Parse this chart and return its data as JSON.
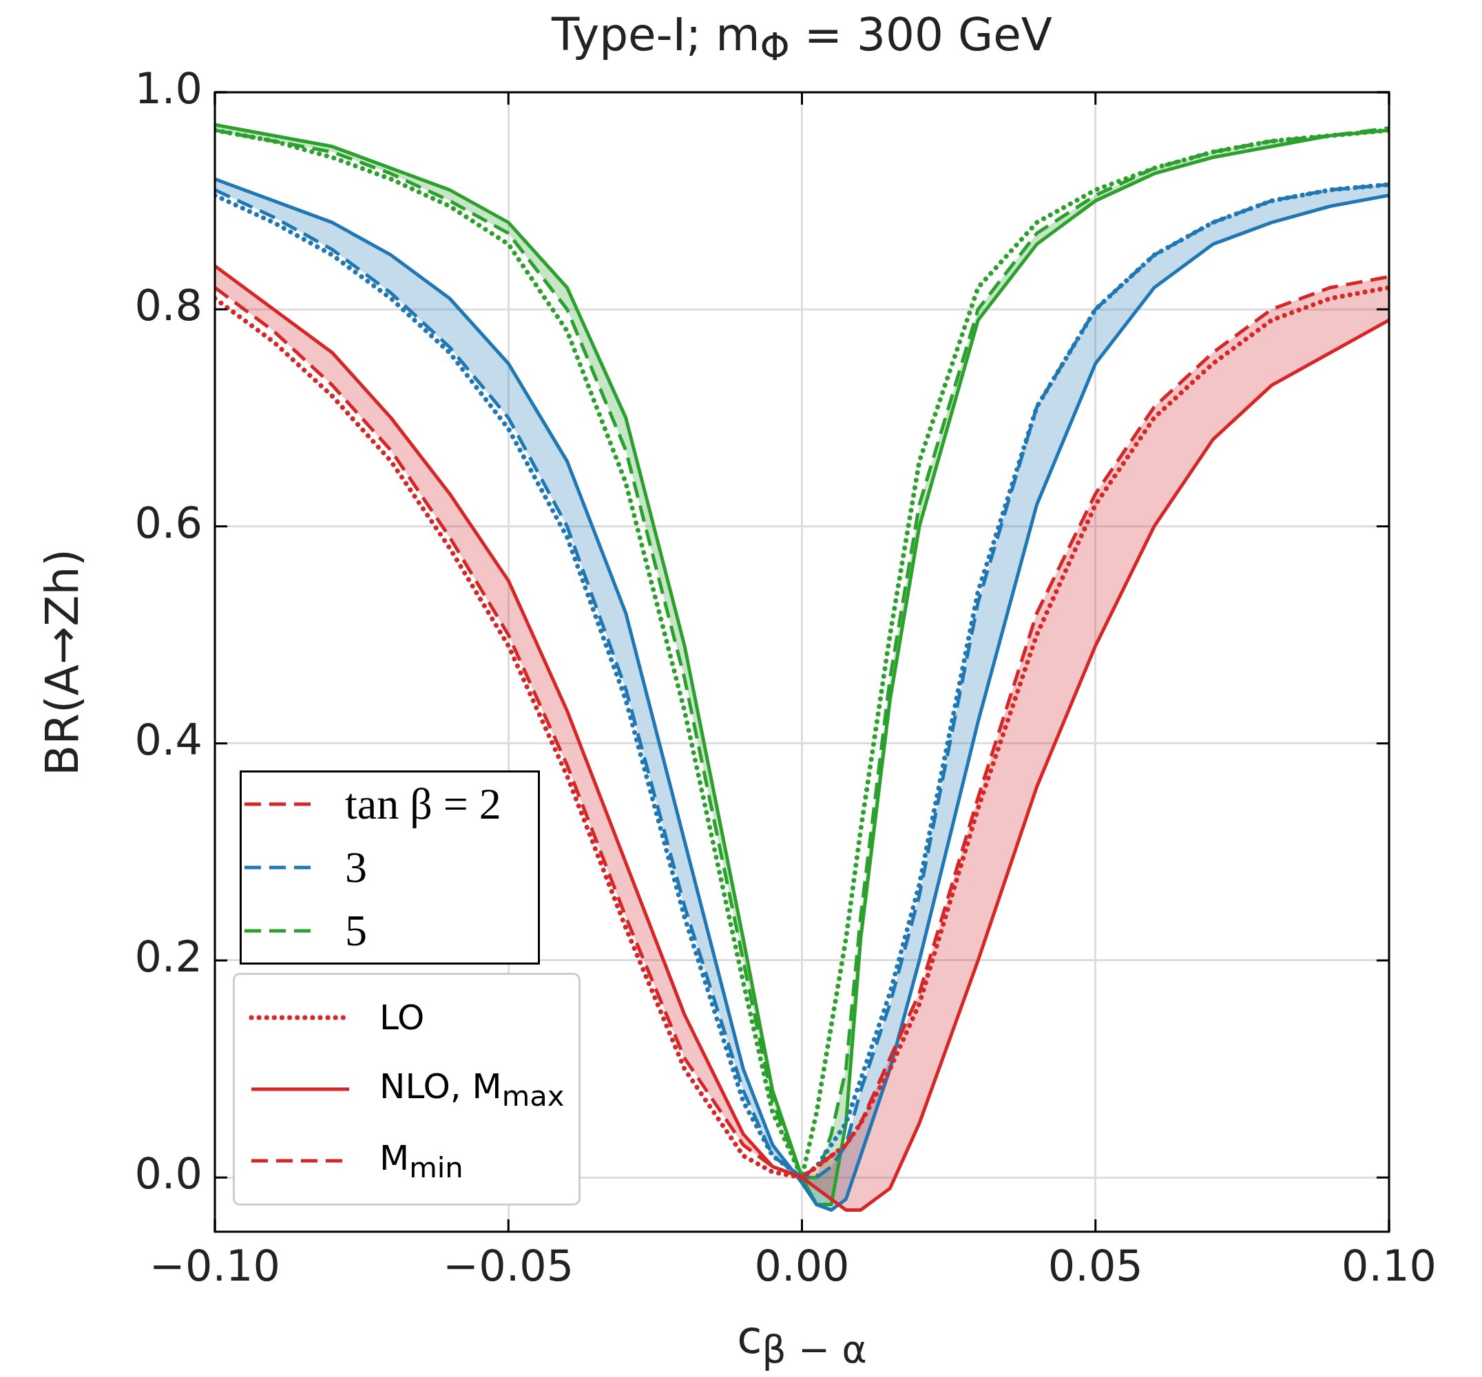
{
  "chart_data": {
    "type": "line",
    "title": "Type-I; m$_{Φ}$ = 300 GeV",
    "xlabel": "c$_{β − α}$",
    "ylabel": "BR(A→Zh)",
    "annotations": [
      "tan β = 2"
    ],
    "x": [
      -0.1,
      -0.09,
      -0.08,
      -0.07,
      -0.06,
      -0.05,
      -0.04,
      -0.03,
      -0.02,
      -0.01,
      -0.005,
      0,
      0.0025,
      0.005,
      0.0075,
      0.01,
      0.015,
      0.02,
      0.03,
      0.04,
      0.05,
      0.06,
      0.07,
      0.08,
      0.09,
      0.1
    ],
    "series": [
      {
        "name": "LO",
        "color": "#d62728",
        "line_style": "dotted",
        "values": [
          0.81,
          0.77,
          0.72,
          0.66,
          0.58,
          0.49,
          0.37,
          0.23,
          0.1,
          0.02,
          0.005,
          0,
          0.01,
          0.02,
          0.03,
          0.05,
          0.1,
          0.16,
          0.34,
          0.5,
          0.62,
          0.7,
          0.75,
          0.79,
          0.81,
          0.82
        ]
      },
      {
        "name": "NLO, M$_{max}$",
        "color": "#d62728",
        "line_style": "solid",
        "values": [
          0.84,
          0.8,
          0.76,
          0.7,
          0.63,
          0.55,
          0.43,
          0.29,
          0.15,
          0.04,
          0.01,
          0,
          -0.01,
          -0.02,
          -0.03,
          -0.03,
          -0.01,
          0.05,
          0.2,
          0.36,
          0.49,
          0.6,
          0.68,
          0.73,
          0.76,
          0.79
        ],
        "lower": [
          0.82,
          0.78,
          0.73,
          0.67,
          0.59,
          0.5,
          0.38,
          0.24,
          0.11,
          0.03,
          0.01,
          0,
          -0.01,
          -0.02,
          -0.03,
          -0.03,
          -0.01,
          0.05,
          0.2,
          0.36,
          0.49,
          0.6,
          0.68,
          0.73,
          0.76,
          0.79
        ],
        "upper": [
          0.84,
          0.8,
          0.76,
          0.7,
          0.63,
          0.55,
          0.43,
          0.29,
          0.15,
          0.04,
          0.01,
          0,
          0.01,
          0.02,
          0.03,
          0.05,
          0.11,
          0.17,
          0.35,
          0.52,
          0.63,
          0.71,
          0.76,
          0.8,
          0.82,
          0.83
        ]
      },
      {
        "name": "M$_{min}$",
        "color": "#d62728",
        "line_style": "dashed",
        "values": [
          0.82,
          0.78,
          0.73,
          0.67,
          0.59,
          0.5,
          0.38,
          0.24,
          0.11,
          0.03,
          0.01,
          0,
          0.01,
          0.02,
          0.03,
          0.05,
          0.11,
          0.17,
          0.35,
          0.52,
          0.63,
          0.71,
          0.76,
          0.8,
          0.82,
          0.83
        ]
      },
      {
        "color": "#1f77b4",
        "line_style": "dotted",
        "values": [
          0.905,
          0.88,
          0.85,
          0.81,
          0.76,
          0.69,
          0.59,
          0.44,
          0.24,
          0.07,
          0.02,
          0,
          0.01,
          0.03,
          0.05,
          0.09,
          0.17,
          0.27,
          0.54,
          0.71,
          0.8,
          0.85,
          0.88,
          0.9,
          0.91,
          0.915
        ]
      },
      {
        "color": "#1f77b4",
        "line_style": "solid",
        "values": [
          0.92,
          0.9,
          0.88,
          0.85,
          0.81,
          0.75,
          0.66,
          0.52,
          0.31,
          0.1,
          0.03,
          -0.005,
          -0.025,
          -0.03,
          -0.02,
          0.02,
          0.1,
          0.2,
          0.42,
          0.62,
          0.75,
          0.82,
          0.86,
          0.88,
          0.895,
          0.905
        ],
        "lower": [
          0.91,
          0.885,
          0.855,
          0.815,
          0.765,
          0.7,
          0.6,
          0.45,
          0.25,
          0.08,
          0.02,
          -0.005,
          -0.025,
          -0.03,
          -0.02,
          0.02,
          0.1,
          0.2,
          0.42,
          0.62,
          0.75,
          0.82,
          0.86,
          0.88,
          0.895,
          0.905
        ],
        "upper": [
          0.92,
          0.9,
          0.88,
          0.85,
          0.81,
          0.75,
          0.66,
          0.52,
          0.31,
          0.1,
          0.03,
          0,
          0,
          0.01,
          0.03,
          0.08,
          0.16,
          0.26,
          0.53,
          0.71,
          0.8,
          0.85,
          0.88,
          0.9,
          0.91,
          0.915
        ]
      },
      {
        "name": "3",
        "color": "#1f77b4",
        "line_style": "dashed",
        "values": [
          0.91,
          0.885,
          0.855,
          0.815,
          0.765,
          0.7,
          0.6,
          0.45,
          0.25,
          0.08,
          0.02,
          0,
          0,
          0.01,
          0.03,
          0.08,
          0.16,
          0.26,
          0.53,
          0.71,
          0.8,
          0.85,
          0.88,
          0.9,
          0.91,
          0.915
        ]
      },
      {
        "color": "#2ca02c",
        "line_style": "dotted",
        "values": [
          0.965,
          0.955,
          0.94,
          0.92,
          0.895,
          0.86,
          0.78,
          0.64,
          0.43,
          0.18,
          0.06,
          0,
          0.06,
          0.14,
          0.22,
          0.32,
          0.5,
          0.66,
          0.82,
          0.88,
          0.91,
          0.93,
          0.945,
          0.955,
          0.96,
          0.965
        ]
      },
      {
        "color": "#2ca02c",
        "line_style": "solid",
        "values": [
          0.97,
          0.96,
          0.95,
          0.93,
          0.91,
          0.88,
          0.82,
          0.7,
          0.49,
          0.22,
          0.08,
          0,
          -0.025,
          -0.025,
          0.05,
          0.22,
          0.44,
          0.6,
          0.79,
          0.86,
          0.9,
          0.925,
          0.94,
          0.95,
          0.96,
          0.965
        ],
        "lower": [
          0.965,
          0.955,
          0.945,
          0.925,
          0.9,
          0.87,
          0.8,
          0.67,
          0.46,
          0.2,
          0.07,
          0,
          -0.025,
          -0.025,
          0.05,
          0.22,
          0.44,
          0.6,
          0.79,
          0.86,
          0.9,
          0.925,
          0.94,
          0.95,
          0.96,
          0.965
        ],
        "upper": [
          0.97,
          0.96,
          0.95,
          0.93,
          0.91,
          0.88,
          0.82,
          0.7,
          0.49,
          0.22,
          0.08,
          0,
          0,
          0.04,
          0.1,
          0.24,
          0.46,
          0.62,
          0.8,
          0.87,
          0.905,
          0.93,
          0.945,
          0.955,
          0.96,
          0.967
        ]
      },
      {
        "name": "5",
        "color": "#2ca02c",
        "line_style": "dashed",
        "values": [
          0.965,
          0.955,
          0.945,
          0.925,
          0.9,
          0.87,
          0.8,
          0.67,
          0.46,
          0.2,
          0.07,
          0,
          0,
          0.04,
          0.1,
          0.24,
          0.46,
          0.62,
          0.8,
          0.87,
          0.905,
          0.93,
          0.945,
          0.955,
          0.96,
          0.967
        ]
      }
    ],
    "xlim": [
      -0.1,
      0.1
    ],
    "xticks": [
      {
        "value": -0.1,
        "label": "−0.10"
      },
      {
        "value": -0.05,
        "label": "−0.05"
      },
      {
        "value": 0,
        "label": "0.00"
      },
      {
        "value": 0.05,
        "label": "0.05"
      },
      {
        "value": 0.1,
        "label": "0.10"
      }
    ],
    "ylim": [
      -0.05,
      1.0
    ],
    "yticks": [
      {
        "value": 0,
        "label": "0.0"
      },
      {
        "value": 0.2,
        "label": "0.2"
      },
      {
        "value": 0.4,
        "label": "0.4"
      },
      {
        "value": 0.6,
        "label": "0.6"
      },
      {
        "value": 0.8,
        "label": "0.8"
      },
      {
        "value": 1.0,
        "label": "1.0"
      }
    ],
    "grid": true,
    "legend": "bottom left",
    "marker": "none"
  }
}
